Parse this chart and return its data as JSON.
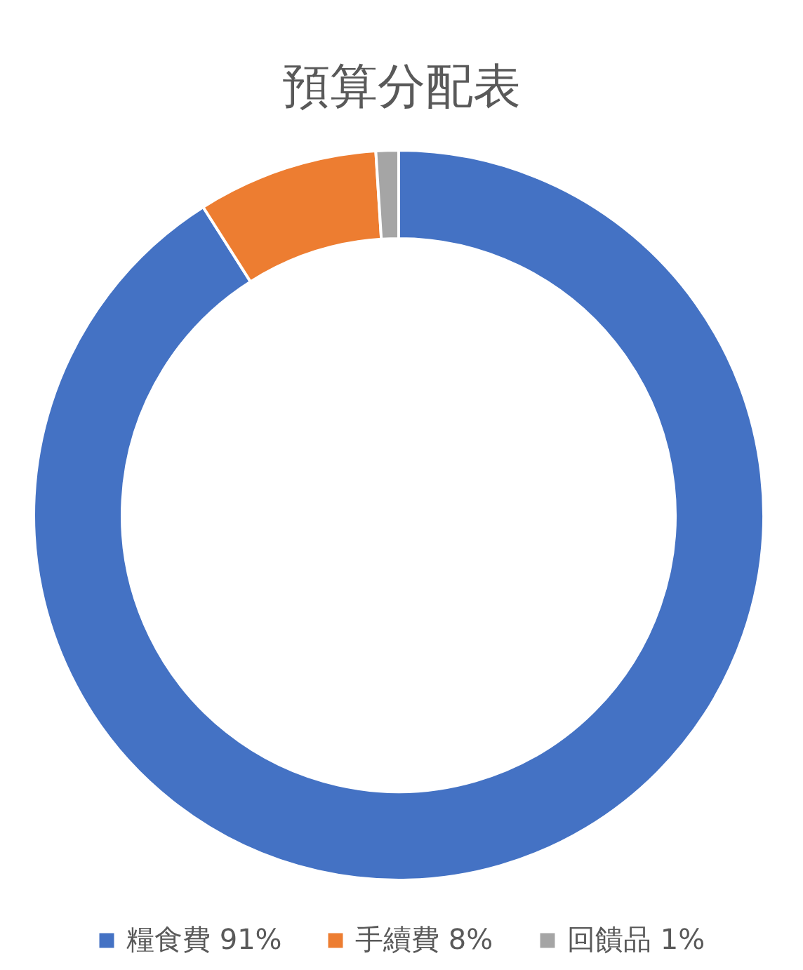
{
  "chart_data": {
    "type": "donut",
    "title": "預算分配表",
    "categories": [
      "糧食費 91%",
      "手續費 8%",
      "回饋品 1%"
    ],
    "values": [
      91,
      8,
      1
    ],
    "colors": [
      "#4472c4",
      "#ed7d31",
      "#a5a5a5"
    ],
    "legend": "bottom"
  }
}
